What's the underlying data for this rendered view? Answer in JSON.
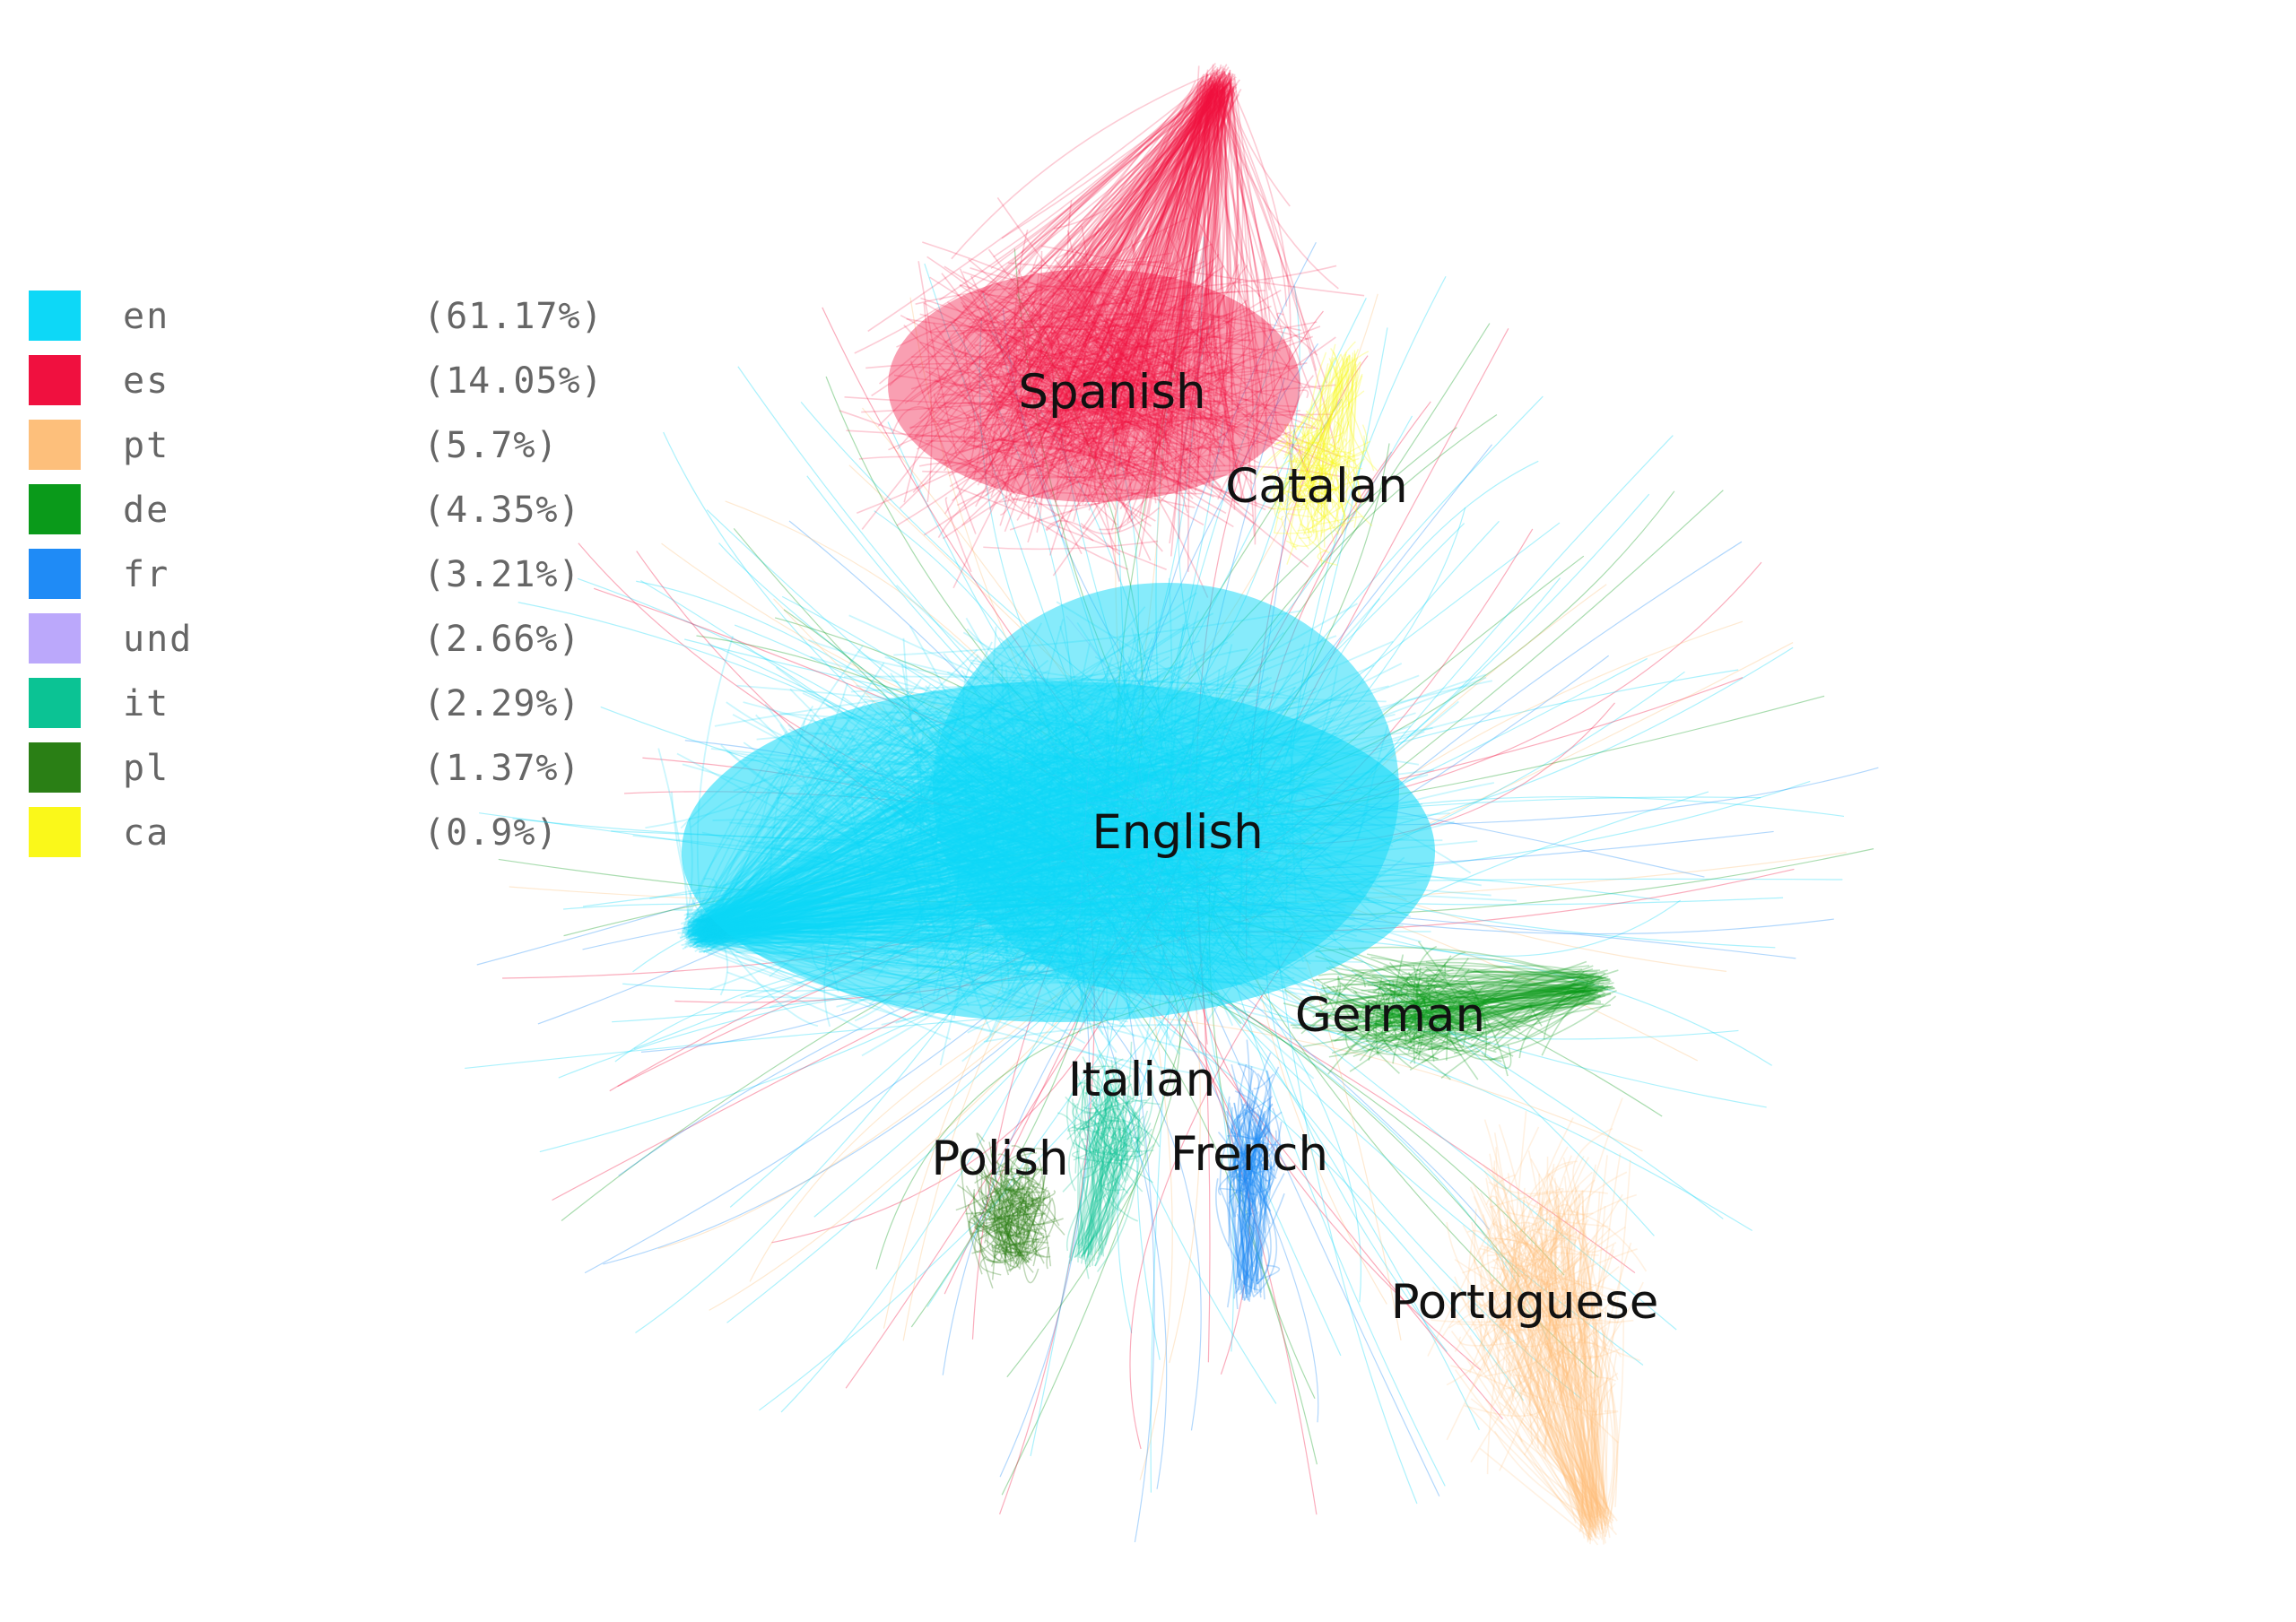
{
  "legend": [
    {
      "code": "en",
      "percent": "(61.17%)",
      "color": "#0dd8f7"
    },
    {
      "code": "es",
      "percent": "(14.05%)",
      "color": "#f0103f"
    },
    {
      "code": "pt",
      "percent": "(5.7%)",
      "color": "#fdbf7b"
    },
    {
      "code": "de",
      "percent": "(4.35%)",
      "color": "#0a9a1a"
    },
    {
      "code": "fr",
      "percent": "(3.21%)",
      "color": "#1f8bf6"
    },
    {
      "code": "und",
      "percent": "(2.66%)",
      "color": "#bba8fb"
    },
    {
      "code": "it",
      "percent": "(2.29%)",
      "color": "#0bc394"
    },
    {
      "code": "pl",
      "percent": "(1.37%)",
      "color": "#2a7f15"
    },
    {
      "code": "ca",
      "percent": "(0.9%)",
      "color": "#faf81a"
    }
  ],
  "clusters": {
    "spanish": "Spanish",
    "catalan": "Catalan",
    "english": "English",
    "german": "German",
    "italian": "Italian",
    "polish": "Polish",
    "french": "French",
    "portuguese": "Portuguese"
  }
}
